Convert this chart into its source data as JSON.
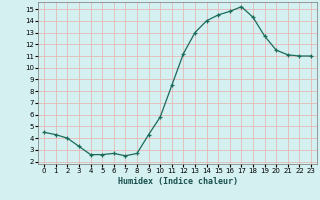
{
  "x": [
    0,
    1,
    2,
    3,
    4,
    5,
    6,
    7,
    8,
    9,
    10,
    11,
    12,
    13,
    14,
    15,
    16,
    17,
    18,
    19,
    20,
    21,
    22,
    23
  ],
  "y": [
    4.5,
    4.3,
    4.0,
    3.3,
    2.6,
    2.6,
    2.7,
    2.5,
    2.7,
    4.3,
    5.8,
    8.5,
    11.2,
    13.0,
    14.0,
    14.5,
    14.8,
    15.2,
    14.3,
    12.7,
    11.5,
    11.1,
    11.0,
    11.0
  ],
  "xlabel": "Humidex (Indice chaleur)",
  "bg_color": "#d4f0f0",
  "grid_color": "#e8b8b8",
  "line_color": "#1a6b5a",
  "xlim": [
    -0.5,
    23.5
  ],
  "ylim": [
    1.8,
    15.6
  ],
  "yticks": [
    2,
    3,
    4,
    5,
    6,
    7,
    8,
    9,
    10,
    11,
    12,
    13,
    14,
    15
  ],
  "xticks": [
    0,
    1,
    2,
    3,
    4,
    5,
    6,
    7,
    8,
    9,
    10,
    11,
    12,
    13,
    14,
    15,
    16,
    17,
    18,
    19,
    20,
    21,
    22,
    23
  ],
  "xlabel_fontsize": 6.0,
  "tick_fontsize": 5.0
}
